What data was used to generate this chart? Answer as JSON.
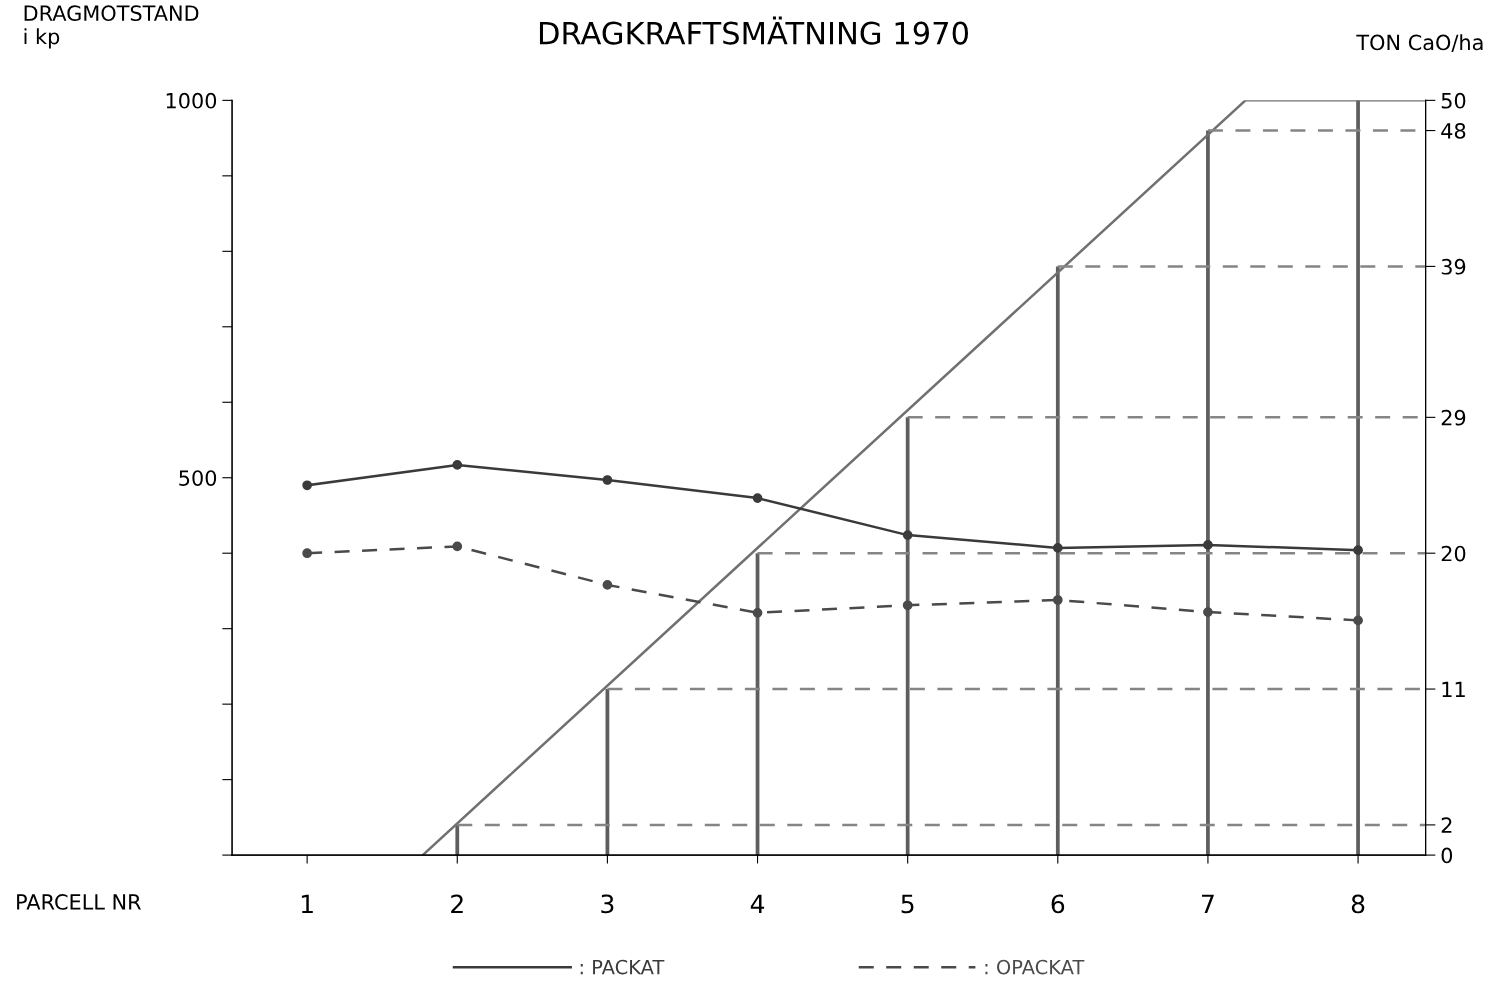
{
  "chart_data": {
    "type": "line",
    "title": "DRAGKRAFTSMÄTNING 1970",
    "ylabel": "DRAGMOTSTAND\ni kp",
    "y2label": "TON CaO/ha",
    "xlabel": "PARCELL NR",
    "xlim": [
      0.5,
      8.45
    ],
    "xticks": [
      1,
      2,
      3,
      4,
      5,
      6,
      7,
      8
    ],
    "ylim": [
      0,
      1000
    ],
    "yticks": [
      {
        "value": 0,
        "label": null
      },
      {
        "value": 100,
        "label": null
      },
      {
        "value": 200,
        "label": null
      },
      {
        "value": 300,
        "label": null
      },
      {
        "value": 400,
        "label": null
      },
      500,
      {
        "value": 600,
        "label": null
      },
      {
        "value": 700,
        "label": null
      },
      {
        "value": 800,
        "label": null
      },
      {
        "value": 900,
        "label": null
      },
      1000
    ],
    "y2lim": [
      0,
      50
    ],
    "y2ticks": [
      0,
      2,
      11,
      20,
      29,
      39,
      48,
      50
    ],
    "grid": false,
    "legend": "bottom",
    "series": [
      {
        "name": ": PACKAT",
        "color": "#3a3a3a",
        "marker": "circle",
        "line_style": "solid",
        "x": [
          1,
          2,
          3,
          4,
          5,
          6,
          7,
          8
        ],
        "values": [
          490,
          517,
          497,
          473,
          424,
          407,
          411,
          404
        ]
      },
      {
        "name": ": OPACKAT",
        "color": "#4a4a4a",
        "marker": "circle",
        "line_style": "dashed",
        "x": [
          1,
          2,
          3,
          4,
          5,
          6,
          7,
          8
        ],
        "values": [
          400,
          409,
          358,
          321,
          331,
          338,
          322,
          311
        ]
      },
      {
        "type": "bar",
        "axis": "y2",
        "color": "#5e5e5e",
        "x": [
          2,
          3,
          4,
          5,
          6,
          7,
          8
        ],
        "values": [
          2,
          11,
          20,
          29,
          39,
          48,
          50
        ]
      },
      {
        "type": "line",
        "axis": "y2",
        "color": "#707070",
        "marker": "none",
        "line_style": "solid",
        "x": [
          1.77,
          7.25,
          8.45
        ],
        "values": [
          0,
          50,
          50
        ]
      },
      {
        "type": "line",
        "axis": "y2",
        "color": "#858585",
        "marker": "none",
        "line_style": "dashed",
        "x": [
          2,
          8.45
        ],
        "values": [
          2,
          2
        ]
      },
      {
        "type": "line",
        "axis": "y2",
        "color": "#858585",
        "marker": "none",
        "line_style": "dashed",
        "x": [
          3,
          8.45
        ],
        "values": [
          11,
          11
        ]
      },
      {
        "type": "line",
        "axis": "y2",
        "color": "#858585",
        "marker": "none",
        "line_style": "dashed",
        "x": [
          4,
          8.45
        ],
        "values": [
          20,
          20
        ]
      },
      {
        "type": "line",
        "axis": "y2",
        "color": "#858585",
        "marker": "none",
        "line_style": "dashed",
        "x": [
          5,
          8.45
        ],
        "values": [
          29,
          29
        ]
      },
      {
        "type": "line",
        "axis": "y2",
        "color": "#858585",
        "marker": "none",
        "line_style": "dashed",
        "x": [
          6,
          8.45
        ],
        "values": [
          39,
          39
        ]
      },
      {
        "type": "line",
        "axis": "y2",
        "color": "#858585",
        "marker": "none",
        "line_style": "dashed",
        "x": [
          7,
          8.45
        ],
        "values": [
          48,
          48
        ]
      }
    ]
  }
}
